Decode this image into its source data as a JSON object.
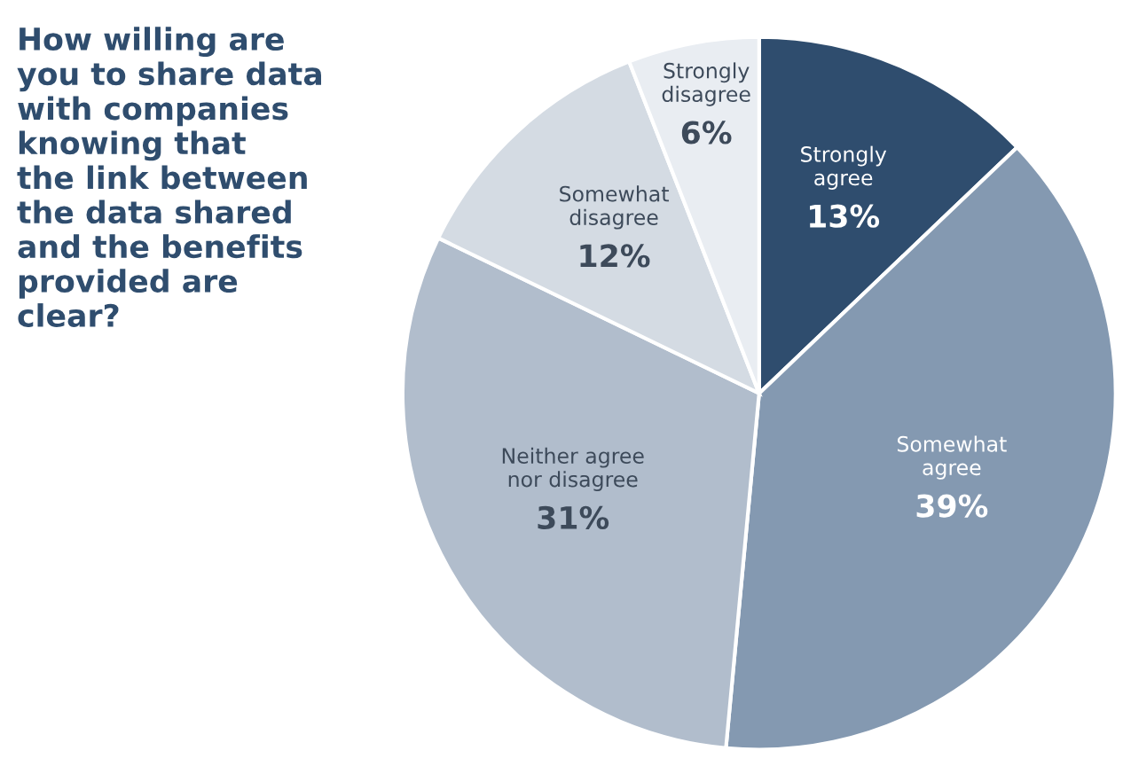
{
  "chart_data": {
    "type": "pie",
    "title": "How willing are\nyou to share data\nwith companies\nknowing that\nthe link between\nthe data shared\nand the benefits\nprovided are\nclear?",
    "categories": [
      "Strongly\nagree",
      "Somewhat\nagree",
      "Neither agree\nnor disagree",
      "Somewhat\ndisagree",
      "Strongly\ndisagree"
    ],
    "values": [
      13,
      39,
      31,
      12,
      6
    ],
    "colors": [
      "#2f4d6e",
      "#8499b1",
      "#b1bdcc",
      "#d4dbe3",
      "#e9edf2"
    ],
    "value_labels": [
      "13%",
      "39%",
      "31%",
      "12%",
      "6%"
    ]
  }
}
